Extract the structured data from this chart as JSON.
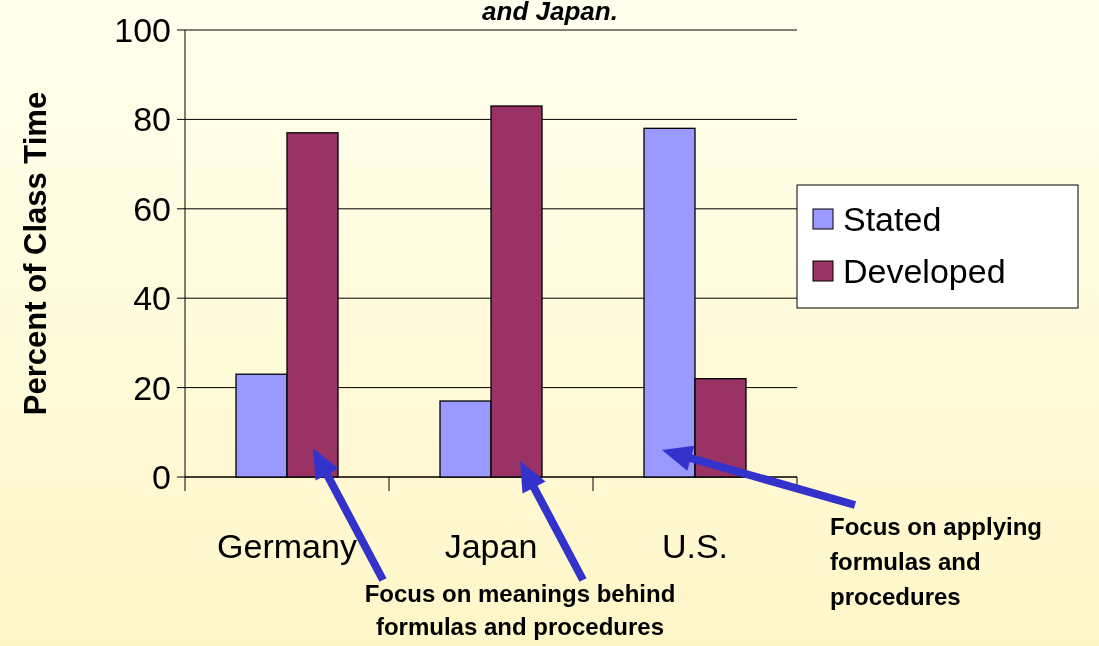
{
  "chart_data": {
    "type": "bar",
    "title": "and Japan.",
    "ylabel": "Percent of Class Time",
    "categories": [
      "Germany",
      "Japan",
      "U.S."
    ],
    "series": [
      {
        "name": "Stated",
        "color": "#9999ff",
        "values": [
          23,
          17,
          78
        ]
      },
      {
        "name": "Developed",
        "color": "#993366",
        "values": [
          77,
          83,
          22
        ]
      }
    ],
    "ylim": [
      0,
      100
    ],
    "yticks": [
      0,
      20,
      40,
      60,
      80,
      100
    ],
    "grid": "y",
    "legend": "right",
    "annotations": [
      "Focus on meanings behind formulas and procedures",
      "Focus on applying formulas and procedures"
    ]
  }
}
